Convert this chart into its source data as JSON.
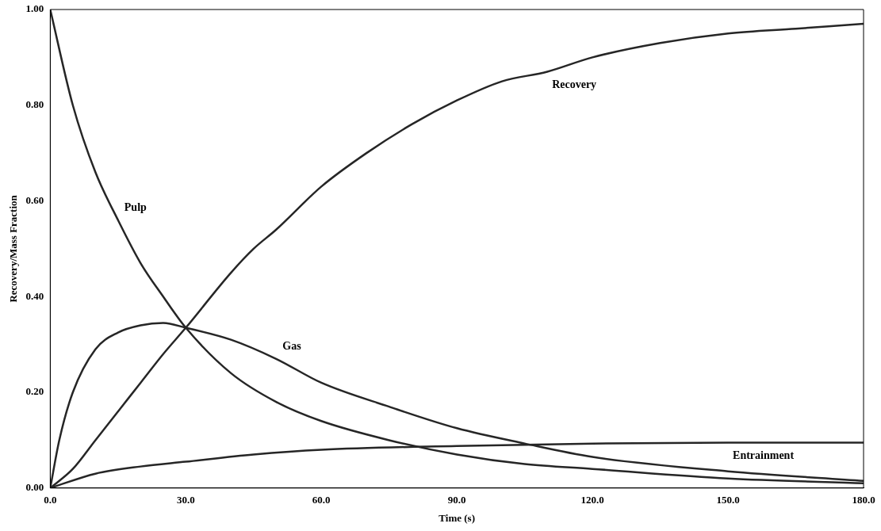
{
  "chart_data": {
    "type": "line",
    "xlabel": "Time (s)",
    "ylabel": "Recovery/Mass Fraction",
    "xlim": [
      0,
      180
    ],
    "ylim": [
      0,
      1
    ],
    "xticks": [
      {
        "value": 0,
        "label": "0.0"
      },
      {
        "value": 30,
        "label": "30.0"
      },
      {
        "value": 60,
        "label": "60.0"
      },
      {
        "value": 90,
        "label": "90.0"
      },
      {
        "value": 120,
        "label": "120.0"
      },
      {
        "value": 150,
        "label": "150.0"
      },
      {
        "value": 180,
        "label": "180.0"
      }
    ],
    "yticks": [
      {
        "value": 0,
        "label": "0.00"
      },
      {
        "value": 0.2,
        "label": "0.20"
      },
      {
        "value": 0.4,
        "label": "0.40"
      },
      {
        "value": 0.6,
        "label": "0.60"
      },
      {
        "value": 0.8,
        "label": "0.80"
      },
      {
        "value": 1,
        "label": "1.00"
      }
    ],
    "grid": false,
    "legend": false,
    "marker": "none",
    "line_style": "solid",
    "series": [
      {
        "color": "#262626",
        "x": [
          0,
          5,
          10,
          15,
          20,
          25,
          30,
          40,
          50,
          60,
          75,
          90,
          105,
          120,
          150,
          180
        ],
        "values": [
          1,
          0.8,
          0.66,
          0.56,
          0.47,
          0.4,
          0.335,
          0.24,
          0.18,
          0.14,
          0.1,
          0.07,
          0.05,
          0.04,
          0.02,
          0.01
        ]
      },
      {
        "color": "#262626",
        "x": [
          0,
          5,
          10,
          15,
          20,
          25,
          30,
          40,
          45,
          50,
          60,
          70,
          80,
          90,
          100,
          110,
          120,
          135,
          150,
          165,
          180
        ],
        "values": [
          0,
          0.04,
          0.1,
          0.16,
          0.22,
          0.28,
          0.335,
          0.45,
          0.5,
          0.54,
          0.63,
          0.7,
          0.76,
          0.81,
          0.85,
          0.87,
          0.9,
          0.93,
          0.95,
          0.96,
          0.97
        ]
      },
      {
        "color": "#262626",
        "x": [
          0,
          2,
          5,
          10,
          15,
          20,
          25,
          30,
          40,
          50,
          60,
          75,
          90,
          105,
          120,
          150,
          180
        ],
        "values": [
          0,
          0.1,
          0.2,
          0.29,
          0.325,
          0.34,
          0.345,
          0.335,
          0.31,
          0.27,
          0.22,
          0.17,
          0.125,
          0.093,
          0.065,
          0.035,
          0.015
        ]
      },
      {
        "color": "#262626",
        "x": [
          0,
          10,
          20,
          30,
          45,
          60,
          90,
          120,
          150,
          180
        ],
        "values": [
          0,
          0.03,
          0.045,
          0.055,
          0.07,
          0.08,
          0.088,
          0.093,
          0.095,
          0.095
        ]
      }
    ],
    "annotations": [
      {
        "text": "Pulp",
        "x": 15,
        "y": 0.56
      },
      {
        "text": "Recovery",
        "x": 110,
        "y": 0.87
      },
      {
        "text": "Gas",
        "x": 50,
        "y": 0.27
      },
      {
        "text": "Entrainment",
        "x": 150,
        "y": 0.095
      }
    ]
  }
}
